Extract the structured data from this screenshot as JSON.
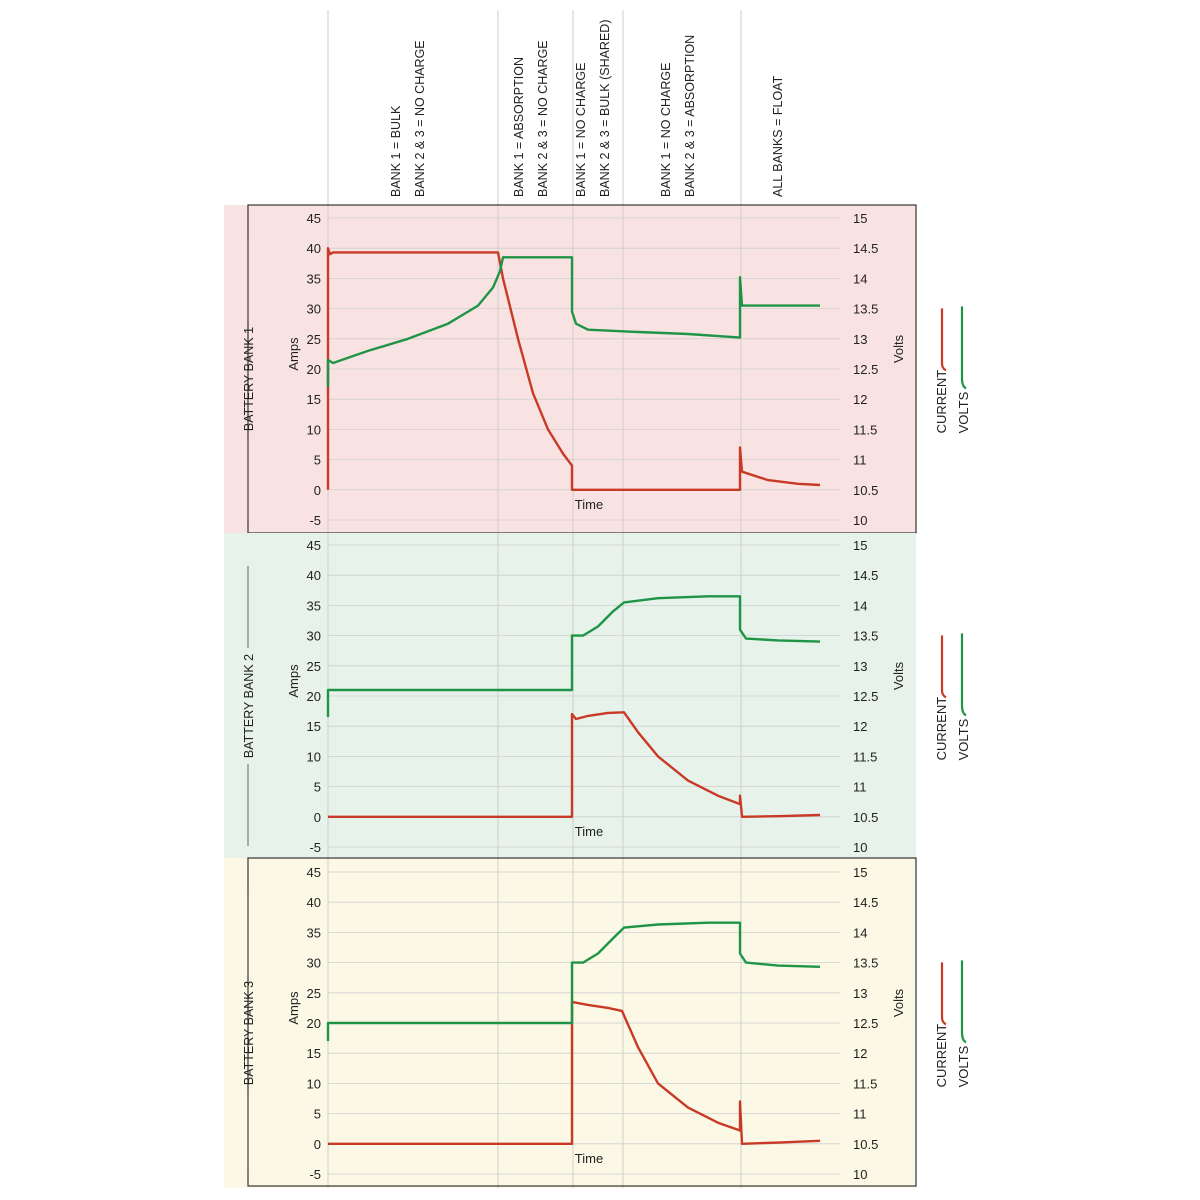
{
  "colors": {
    "current": "#c83a26",
    "volts": "#1f9446",
    "grid": "#cfcfcf",
    "frame": "#333333",
    "bank1_bg": "#f9e3e2",
    "bank2_bg": "#e6f2ea",
    "bank3_bg": "#fbf8e6"
  },
  "phases": [
    {
      "lines": [
        "BANK 1 = BULK",
        "BANK 2 & 3 = NO CHARGE"
      ]
    },
    {
      "lines": [
        "BANK 1 = ABSORPTION",
        "BANK 2 & 3 = NO CHARGE"
      ]
    },
    {
      "lines": [
        "BANK 1 = NO CHARGE",
        "BANK 2 & 3 = BULK (SHARED)"
      ]
    },
    {
      "lines": [
        "BANK 1 = NO CHARGE",
        "BANK 2 & 3 = ABSORPTION"
      ]
    },
    {
      "lines": [
        "ALL BANKS = FLOAT"
      ]
    }
  ],
  "chart_data": [
    {
      "type": "line",
      "title": "BATTERY BANK 1",
      "xlabel": "Time",
      "ylabel_left": "Amps",
      "ylabel_right": "Volts",
      "ylim_left": [
        -5,
        45
      ],
      "yticks_left": [
        "45",
        "40",
        "35",
        "30",
        "25",
        "20",
        "15",
        "10",
        "5",
        "0",
        "-5"
      ],
      "ylim_right": [
        10,
        15
      ],
      "yticks_right": [
        "15",
        "14.5",
        "14",
        "13.5",
        "13",
        "12.5",
        "12",
        "11.5",
        "11",
        "10.5",
        "10"
      ],
      "legend": [
        "CURRENT",
        "VOLTS"
      ],
      "series": [
        {
          "name": "CURRENT",
          "axis": "left",
          "points": [
            [
              0,
              0
            ],
            [
              0,
              40
            ],
            [
              2,
              39
            ],
            [
              5,
              39.3
            ],
            [
              170,
              39.3
            ],
            [
              175,
              35
            ],
            [
              190,
              25
            ],
            [
              205,
              16
            ],
            [
              220,
              10
            ],
            [
              235,
              6
            ],
            [
              244,
              4
            ],
            [
              244,
              0
            ],
            [
              412,
              0
            ],
            [
              412,
              7
            ],
            [
              414,
              3
            ],
            [
              440,
              1.6
            ],
            [
              470,
              1
            ],
            [
              492,
              0.8
            ]
          ]
        },
        {
          "name": "VOLTS",
          "axis": "right",
          "points": [
            [
              0,
              12.2
            ],
            [
              0,
              12.65
            ],
            [
              5,
              12.6
            ],
            [
              40,
              12.8
            ],
            [
              80,
              13
            ],
            [
              120,
              13.25
            ],
            [
              150,
              13.55
            ],
            [
              165,
              13.85
            ],
            [
              172,
              14.12
            ],
            [
              175,
              14.35
            ],
            [
              244,
              14.35
            ],
            [
              244,
              13.45
            ],
            [
              248,
              13.25
            ],
            [
              260,
              13.15
            ],
            [
              300,
              13.12
            ],
            [
              360,
              13.08
            ],
            [
              412,
              13.02
            ],
            [
              412,
              14.02
            ],
            [
              414,
              13.55
            ],
            [
              492,
              13.55
            ]
          ]
        }
      ]
    },
    {
      "type": "line",
      "title": "BATTERY BANK 2",
      "xlabel": "Time",
      "ylabel_left": "Amps",
      "ylabel_right": "Volts",
      "ylim_left": [
        -5,
        45
      ],
      "yticks_left": [
        "45",
        "40",
        "35",
        "30",
        "25",
        "20",
        "15",
        "10",
        "5",
        "0",
        "-5"
      ],
      "ylim_right": [
        10,
        15
      ],
      "yticks_right": [
        "15",
        "14.5",
        "14",
        "13.5",
        "13",
        "12.5",
        "12",
        "11.5",
        "11",
        "10.5",
        "10"
      ],
      "legend": [
        "CURRENT",
        "VOLTS"
      ],
      "series": [
        {
          "name": "CURRENT",
          "axis": "left",
          "points": [
            [
              0,
              0
            ],
            [
              244,
              0
            ],
            [
              244,
              17
            ],
            [
              248,
              16.2
            ],
            [
              260,
              16.7
            ],
            [
              280,
              17.2
            ],
            [
              296,
              17.3
            ],
            [
              310,
              14
            ],
            [
              330,
              10
            ],
            [
              360,
              6
            ],
            [
              390,
              3.5
            ],
            [
              412,
              2.1
            ],
            [
              412,
              3.5
            ],
            [
              414,
              0
            ],
            [
              450,
              0.1
            ],
            [
              492,
              0.3
            ]
          ]
        },
        {
          "name": "VOLTS",
          "axis": "right",
          "points": [
            [
              0,
              12.15
            ],
            [
              0,
              12.6
            ],
            [
              244,
              12.6
            ],
            [
              244,
              13.5
            ],
            [
              255,
              13.5
            ],
            [
              270,
              13.65
            ],
            [
              285,
              13.9
            ],
            [
              296,
              14.05
            ],
            [
              330,
              14.12
            ],
            [
              380,
              14.15
            ],
            [
              412,
              14.15
            ],
            [
              412,
              13.6
            ],
            [
              418,
              13.45
            ],
            [
              450,
              13.42
            ],
            [
              492,
              13.4
            ]
          ]
        }
      ]
    },
    {
      "type": "line",
      "title": "BATTERY BANK 3",
      "xlabel": "Time",
      "ylabel_left": "Amps",
      "ylabel_right": "Volts",
      "ylim_left": [
        -5,
        45
      ],
      "yticks_left": [
        "45",
        "40",
        "35",
        "30",
        "25",
        "20",
        "15",
        "10",
        "5",
        "0",
        "-5"
      ],
      "ylim_right": [
        10,
        15
      ],
      "yticks_right": [
        "15",
        "14.5",
        "14",
        "13.5",
        "13",
        "12.5",
        "12",
        "11.5",
        "11",
        "10.5",
        "10"
      ],
      "legend": [
        "CURRENT",
        "VOLTS"
      ],
      "series": [
        {
          "name": "CURRENT",
          "axis": "left",
          "points": [
            [
              0,
              0
            ],
            [
              244,
              0
            ],
            [
              244,
              23.5
            ],
            [
              260,
              23
            ],
            [
              280,
              22.5
            ],
            [
              294,
              22
            ],
            [
              310,
              16
            ],
            [
              330,
              10
            ],
            [
              360,
              6
            ],
            [
              390,
              3.5
            ],
            [
              412,
              2.2
            ],
            [
              412,
              7
            ],
            [
              414,
              0
            ],
            [
              450,
              0.2
            ],
            [
              492,
              0.5
            ]
          ]
        },
        {
          "name": "VOLTS",
          "axis": "right",
          "points": [
            [
              0,
              12.2
            ],
            [
              0,
              12.5
            ],
            [
              244,
              12.5
            ],
            [
              244,
              13.5
            ],
            [
              255,
              13.5
            ],
            [
              270,
              13.65
            ],
            [
              285,
              13.9
            ],
            [
              296,
              14.08
            ],
            [
              330,
              14.13
            ],
            [
              380,
              14.16
            ],
            [
              412,
              14.16
            ],
            [
              412,
              13.65
            ],
            [
              418,
              13.5
            ],
            [
              450,
              13.45
            ],
            [
              492,
              13.43
            ]
          ]
        }
      ]
    }
  ]
}
